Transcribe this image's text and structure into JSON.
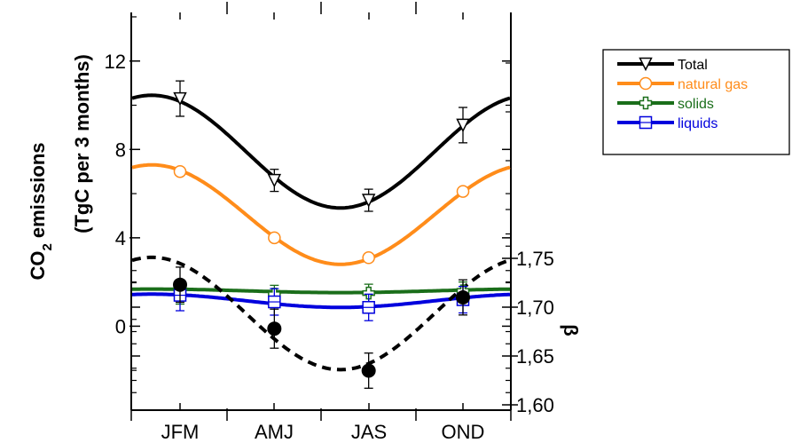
{
  "chart_data": {
    "type": "line",
    "categories": [
      "JFM",
      "AMJ",
      "JAS",
      "OND"
    ],
    "left_axis": {
      "label_line1": "CO",
      "label_sub": "2",
      "label_line1_rest": " emissions",
      "label_line2": "(TgC per 3 months)",
      "ylim": [
        -3.8,
        14.2
      ],
      "ticks": [
        0,
        4,
        8,
        12
      ],
      "tick_labels": [
        "0",
        "4",
        "8",
        "12"
      ]
    },
    "right_axis": {
      "label": "β",
      "ylim": [
        1.6,
        1.75
      ],
      "ticks": [
        1.6,
        1.65,
        1.7,
        1.75
      ],
      "tick_labels": [
        "1,60",
        "1,65",
        "1,70",
        "1,75"
      ]
    },
    "series": [
      {
        "name": "Total",
        "color": "#000000",
        "marker": "triangle-down",
        "points": [
          10.3,
          6.6,
          5.7,
          9.1
        ],
        "errors": [
          0.8,
          0.5,
          0.5,
          0.8
        ],
        "fit": {
          "mean": 7.9,
          "amp": 2.55,
          "peak_x": 0.3
        }
      },
      {
        "name": "natural gas",
        "color": "#ff8c1a",
        "marker": "circle",
        "points": [
          7.0,
          4.0,
          3.1,
          6.1
        ],
        "errors": [
          0,
          0,
          0,
          0
        ],
        "fit": {
          "mean": 5.05,
          "amp": 2.25,
          "peak_x": 0.3
        }
      },
      {
        "name": "solids",
        "color": "#1a6e1a",
        "marker": "cross",
        "points": [
          1.5,
          1.45,
          1.5,
          1.6
        ],
        "errors": [
          0.5,
          0.4,
          0.4,
          0.4
        ],
        "fit": {
          "mean": 1.6,
          "amp": 0.08,
          "peak_x": 0.3
        }
      },
      {
        "name": "liquids",
        "color": "#0000dd",
        "marker": "square",
        "points": [
          1.4,
          1.1,
          0.85,
          1.2
        ],
        "errors": [
          0.7,
          0.6,
          0.6,
          0.6
        ],
        "fit": {
          "mean": 1.15,
          "amp": 0.3,
          "peak_x": 0.3
        }
      }
    ],
    "beta": {
      "points": [
        1.723,
        1.678,
        1.635,
        1.71
      ],
      "errors": [
        0.018,
        0.02,
        0.018,
        0.018
      ],
      "fit": {
        "mean": 1.6935,
        "amp": 0.0575,
        "peak_x": 0.3
      }
    },
    "legend": {
      "position": "top-right",
      "entries": [
        "Total",
        "natural gas",
        "solids",
        "liquids"
      ]
    }
  }
}
